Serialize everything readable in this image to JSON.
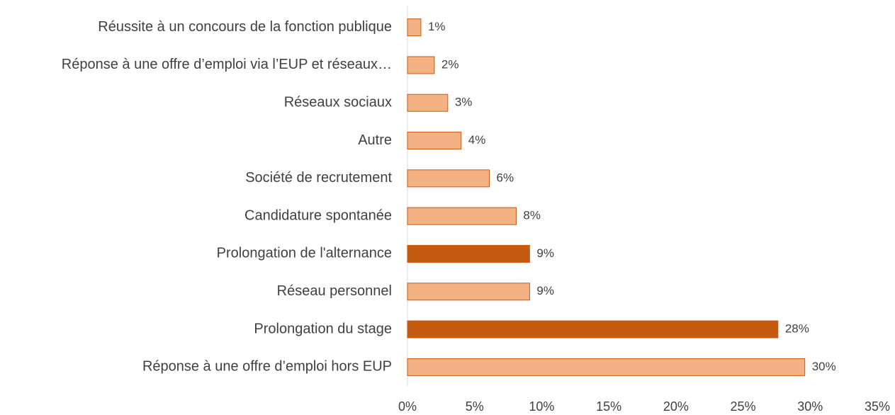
{
  "chart_data": {
    "type": "barh",
    "categories": [
      "Réussite à un concours de la fonction publique",
      "Réponse à une offre d’emploi via l’EUP et réseaux…",
      "Réseaux sociaux",
      "Autre",
      "Société de recrutement",
      "Candidature spontanée",
      "Prolongation de l'alternance",
      "Réseau personnel",
      "Prolongation du stage",
      "Réponse à une offre d’emploi hors EUP"
    ],
    "values": [
      1,
      2,
      3,
      4,
      6.1,
      8.1,
      9.1,
      9.1,
      27.6,
      29.6
    ],
    "value_labels": [
      "1%",
      "2%",
      "3%",
      "4%",
      "6%",
      "8%",
      "9%",
      "9%",
      "28%",
      "30%"
    ],
    "colors": [
      "#f4b183",
      "#f4b183",
      "#f4b183",
      "#f4b183",
      "#f4b183",
      "#f4b183",
      "#c55a11",
      "#f4b183",
      "#c55a11",
      "#f4b183"
    ],
    "edge_color": "#c55a11",
    "xlim": [
      0,
      35
    ],
    "xticks": [
      {
        "value": 0,
        "label": "0%"
      },
      {
        "value": 5,
        "label": "5%"
      },
      {
        "value": 10,
        "label": "10%"
      },
      {
        "value": 15,
        "label": "15%"
      },
      {
        "value": 20,
        "label": "20%"
      },
      {
        "value": 25,
        "label": "25%"
      },
      {
        "value": 30,
        "label": "30%"
      },
      {
        "value": 35,
        "label": "35%"
      }
    ]
  }
}
